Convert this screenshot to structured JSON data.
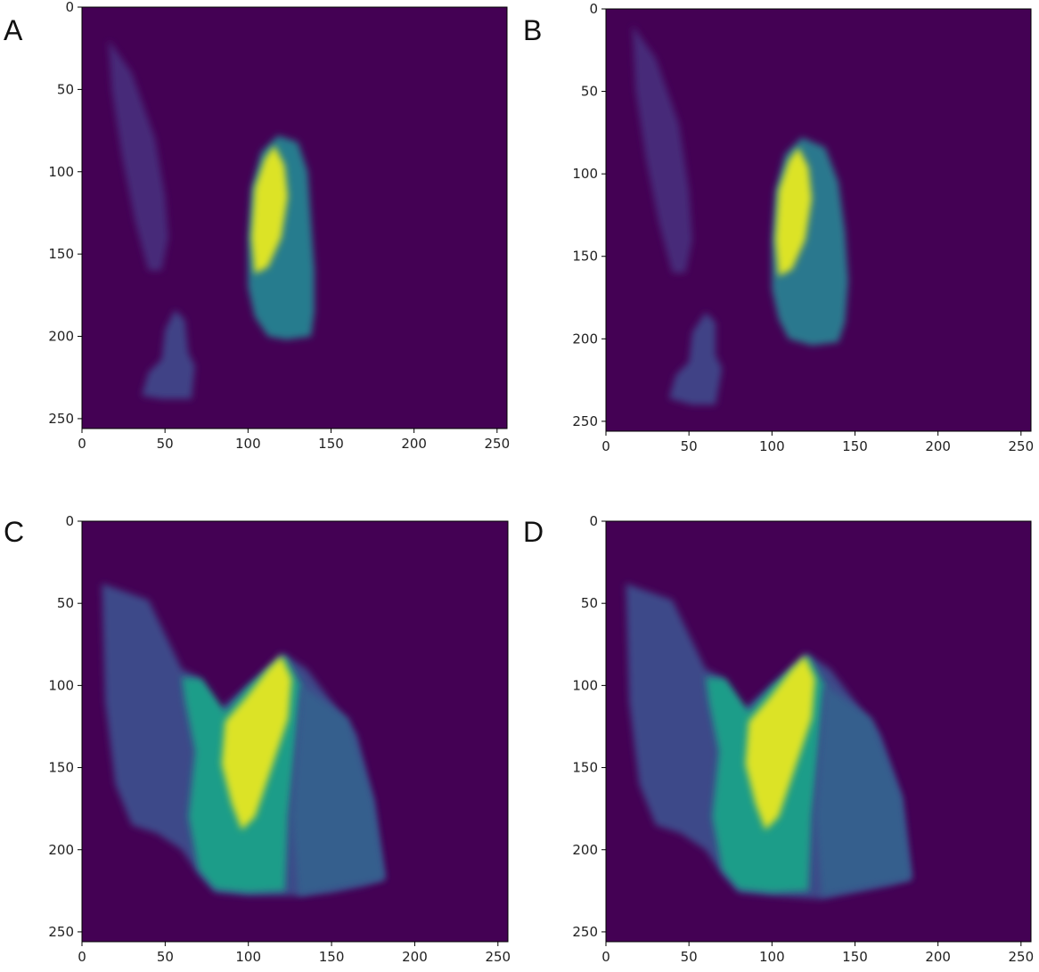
{
  "chart_data": [
    {
      "type": "heatmap",
      "panel_label": "A",
      "colormap": "viridis",
      "background_color": "#440154",
      "xlim": [
        0,
        256
      ],
      "ylim": [
        256,
        0
      ],
      "xticks": [
        0,
        50,
        100,
        150,
        200,
        250
      ],
      "yticks": [
        0,
        50,
        100,
        150,
        200,
        250
      ],
      "xtick_labels": [
        "0",
        "50",
        "100",
        "150",
        "200",
        "250"
      ],
      "ytick_labels": [
        "0",
        "50",
        "100",
        "150",
        "200",
        "250"
      ],
      "regions": [
        {
          "name": "main-blob",
          "polygon": [
            [
              118,
              78
            ],
            [
              130,
              82
            ],
            [
              136,
              100
            ],
            [
              138,
              130
            ],
            [
              140,
              160
            ],
            [
              140,
              185
            ],
            [
              138,
              200
            ],
            [
              123,
              202
            ],
            [
              112,
              200
            ],
            [
              104,
              188
            ],
            [
              100,
              170
            ],
            [
              100,
              140
            ],
            [
              102,
              110
            ],
            [
              108,
              88
            ]
          ],
          "value": 0.42
        },
        {
          "name": "bright-core",
          "polygon": [
            [
              116,
              84
            ],
            [
              122,
              96
            ],
            [
              124,
              115
            ],
            [
              120,
              140
            ],
            [
              112,
              158
            ],
            [
              104,
              162
            ],
            [
              102,
              140
            ],
            [
              104,
              110
            ],
            [
              110,
              92
            ]
          ],
          "value": 0.95
        },
        {
          "name": "left-streak",
          "polygon": [
            [
              16,
              20
            ],
            [
              30,
              40
            ],
            [
              44,
              80
            ],
            [
              50,
              115
            ],
            [
              52,
              140
            ],
            [
              48,
              160
            ],
            [
              40,
              160
            ],
            [
              32,
              130
            ],
            [
              24,
              90
            ],
            [
              18,
              50
            ]
          ],
          "value": 0.12
        },
        {
          "name": "lower-left",
          "polygon": [
            [
              56,
              184
            ],
            [
              62,
              190
            ],
            [
              64,
              210
            ],
            [
              68,
              218
            ],
            [
              66,
              238
            ],
            [
              48,
              238
            ],
            [
              36,
              236
            ],
            [
              40,
              222
            ],
            [
              48,
              214
            ],
            [
              50,
              196
            ]
          ],
          "value": 0.2
        }
      ]
    },
    {
      "type": "heatmap",
      "panel_label": "B",
      "colormap": "viridis",
      "background_color": "#440154",
      "xlim": [
        0,
        256
      ],
      "ylim": [
        256,
        0
      ],
      "xticks": [
        0,
        50,
        100,
        150,
        200,
        250
      ],
      "yticks": [
        0,
        50,
        100,
        150,
        200,
        250
      ],
      "xtick_labels": [
        "0",
        "50",
        "100",
        "150",
        "200",
        "250"
      ],
      "ytick_labels": [
        "0",
        "50",
        "100",
        "150",
        "200",
        "250"
      ],
      "regions": [
        {
          "name": "main-blob",
          "polygon": [
            [
              118,
              78
            ],
            [
              132,
              84
            ],
            [
              140,
              105
            ],
            [
              144,
              135
            ],
            [
              146,
              165
            ],
            [
              144,
              190
            ],
            [
              140,
              202
            ],
            [
              124,
              204
            ],
            [
              110,
              200
            ],
            [
              104,
              188
            ],
            [
              100,
              170
            ],
            [
              100,
              140
            ],
            [
              102,
              110
            ],
            [
              108,
              88
            ]
          ],
          "value": 0.4
        },
        {
          "name": "bright-core",
          "polygon": [
            [
              116,
              84
            ],
            [
              122,
              96
            ],
            [
              124,
              115
            ],
            [
              120,
              140
            ],
            [
              112,
              158
            ],
            [
              104,
              162
            ],
            [
              102,
              140
            ],
            [
              104,
              110
            ],
            [
              110,
              92
            ]
          ],
          "value": 0.95
        },
        {
          "name": "left-streak",
          "polygon": [
            [
              16,
              10
            ],
            [
              30,
              30
            ],
            [
              44,
              70
            ],
            [
              50,
              110
            ],
            [
              52,
              140
            ],
            [
              48,
              160
            ],
            [
              40,
              160
            ],
            [
              32,
              130
            ],
            [
              24,
              90
            ],
            [
              18,
              50
            ]
          ],
          "value": 0.12
        },
        {
          "name": "lower-left",
          "polygon": [
            [
              60,
              184
            ],
            [
              66,
              190
            ],
            [
              66,
              210
            ],
            [
              70,
              218
            ],
            [
              66,
              240
            ],
            [
              52,
              240
            ],
            [
              38,
              236
            ],
            [
              42,
              222
            ],
            [
              50,
              214
            ],
            [
              52,
              196
            ]
          ],
          "value": 0.2
        }
      ]
    },
    {
      "type": "heatmap",
      "panel_label": "C",
      "colormap": "viridis",
      "background_color": "#440154",
      "xlim": [
        0,
        256
      ],
      "ylim": [
        256,
        0
      ],
      "xticks": [
        0,
        50,
        100,
        150,
        200,
        250
      ],
      "yticks": [
        0,
        50,
        100,
        150,
        200,
        250
      ],
      "xtick_labels": [
        "0",
        "50",
        "100",
        "150",
        "200",
        "250"
      ],
      "ytick_labels": [
        "0",
        "50",
        "100",
        "150",
        "200",
        "250"
      ],
      "regions": [
        {
          "name": "wide-envelope",
          "polygon": [
            [
              12,
              38
            ],
            [
              40,
              48
            ],
            [
              60,
              90
            ],
            [
              70,
              95
            ],
            [
              82,
              115
            ],
            [
              100,
              100
            ],
            [
              120,
              80
            ],
            [
              135,
              90
            ],
            [
              150,
              110
            ],
            [
              165,
              130
            ],
            [
              175,
              170
            ],
            [
              182,
              218
            ],
            [
              170,
              222
            ],
            [
              150,
              226
            ],
            [
              130,
              228
            ],
            [
              100,
              228
            ],
            [
              80,
              226
            ],
            [
              70,
              215
            ],
            [
              60,
              200
            ],
            [
              45,
              190
            ],
            [
              30,
              185
            ],
            [
              20,
              160
            ],
            [
              14,
              110
            ]
          ],
          "value": 0.22
        },
        {
          "name": "teal-band",
          "polygon": [
            [
              60,
              95
            ],
            [
              72,
              96
            ],
            [
              86,
              116
            ],
            [
              100,
              100
            ],
            [
              122,
              82
            ],
            [
              132,
              100
            ],
            [
              128,
              140
            ],
            [
              124,
              180
            ],
            [
              122,
              225
            ],
            [
              100,
              226
            ],
            [
              80,
              224
            ],
            [
              70,
              212
            ],
            [
              64,
              180
            ],
            [
              68,
              140
            ],
            [
              62,
              110
            ]
          ],
          "value": 0.55
        },
        {
          "name": "bright-core",
          "polygon": [
            [
              120,
              82
            ],
            [
              126,
              96
            ],
            [
              124,
              120
            ],
            [
              114,
              150
            ],
            [
              104,
              180
            ],
            [
              96,
              188
            ],
            [
              90,
              172
            ],
            [
              84,
              148
            ],
            [
              86,
              122
            ],
            [
              98,
              108
            ],
            [
              112,
              90
            ]
          ],
          "value": 0.95
        },
        {
          "name": "right-fan",
          "polygon": [
            [
              132,
              100
            ],
            [
              160,
              120
            ],
            [
              175,
              170
            ],
            [
              182,
              218
            ],
            [
              130,
              228
            ],
            [
              126,
              180
            ]
          ],
          "value": 0.3
        }
      ]
    },
    {
      "type": "heatmap",
      "panel_label": "D",
      "colormap": "viridis",
      "background_color": "#440154",
      "xlim": [
        0,
        256
      ],
      "ylim": [
        256,
        0
      ],
      "xticks": [
        0,
        50,
        100,
        150,
        200,
        250
      ],
      "yticks": [
        0,
        50,
        100,
        150,
        200,
        250
      ],
      "xtick_labels": [
        "0",
        "50",
        "100",
        "150",
        "200",
        "250"
      ],
      "ytick_labels": [
        "0",
        "50",
        "100",
        "150",
        "200",
        "250"
      ],
      "regions": [
        {
          "name": "wide-envelope",
          "polygon": [
            [
              12,
              38
            ],
            [
              40,
              48
            ],
            [
              60,
              90
            ],
            [
              70,
              95
            ],
            [
              82,
              115
            ],
            [
              100,
              100
            ],
            [
              120,
              80
            ],
            [
              135,
              90
            ],
            [
              150,
              110
            ],
            [
              165,
              130
            ],
            [
              178,
              168
            ],
            [
              184,
              218
            ],
            [
              170,
              222
            ],
            [
              150,
              226
            ],
            [
              130,
              230
            ],
            [
              100,
              228
            ],
            [
              80,
              226
            ],
            [
              70,
              215
            ],
            [
              60,
              200
            ],
            [
              45,
              190
            ],
            [
              30,
              185
            ],
            [
              20,
              160
            ],
            [
              14,
              110
            ]
          ],
          "value": 0.22
        },
        {
          "name": "teal-band",
          "polygon": [
            [
              60,
              95
            ],
            [
              72,
              96
            ],
            [
              86,
              116
            ],
            [
              100,
              100
            ],
            [
              122,
              82
            ],
            [
              132,
              100
            ],
            [
              128,
              140
            ],
            [
              124,
              180
            ],
            [
              122,
              225
            ],
            [
              100,
              226
            ],
            [
              80,
              224
            ],
            [
              70,
              212
            ],
            [
              64,
              180
            ],
            [
              68,
              140
            ],
            [
              62,
              110
            ]
          ],
          "value": 0.55
        },
        {
          "name": "bright-core",
          "polygon": [
            [
              120,
              82
            ],
            [
              126,
              96
            ],
            [
              124,
              120
            ],
            [
              114,
              150
            ],
            [
              104,
              180
            ],
            [
              96,
              188
            ],
            [
              90,
              172
            ],
            [
              84,
              148
            ],
            [
              86,
              122
            ],
            [
              98,
              108
            ],
            [
              112,
              90
            ]
          ],
          "value": 0.95
        },
        {
          "name": "right-fan",
          "polygon": [
            [
              132,
              100
            ],
            [
              160,
              120
            ],
            [
              178,
              168
            ],
            [
              184,
              218
            ],
            [
              130,
              228
            ],
            [
              126,
              180
            ]
          ],
          "value": 0.3
        }
      ]
    }
  ]
}
